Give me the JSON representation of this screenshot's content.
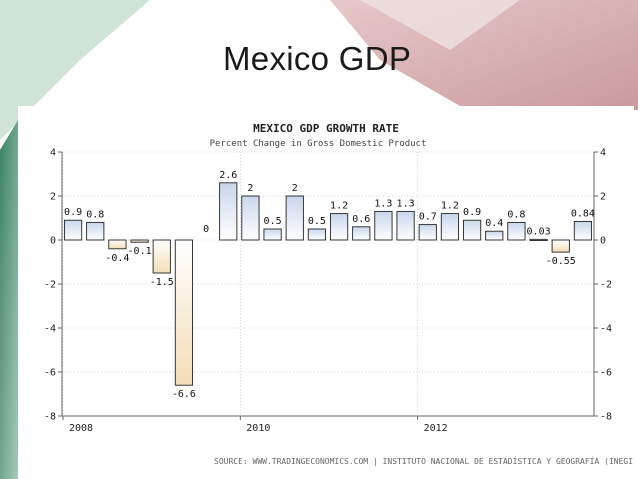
{
  "slide": {
    "title": "Mexico GDP"
  },
  "colors": {
    "positive_bar_top": "#c9d6ec",
    "positive_bar_bottom": "#ffffff",
    "negative_bar_top": "#ffffff",
    "negative_bar_bottom": "#f3ddb6",
    "bar_stroke": "#222222",
    "background_green": "#2f7a5a",
    "background_rose": "#c99a9e"
  },
  "chart_data": {
    "type": "bar",
    "title": "MEXICO GDP GROWTH RATE",
    "subtitle": "Percent Change in Gross Domestic Product",
    "source": "SOURCE: WWW.TRADINGECONOMICS.COM | INSTITUTO NACIONAL DE ESTADÍSTICA Y GEOGRAFÍA (INEGI)",
    "ylim": [
      -8,
      4
    ],
    "yticks": [
      4,
      2,
      0,
      -2,
      -4,
      -6,
      -8
    ],
    "xtick_labels": [
      "2008",
      "2010",
      "2012"
    ],
    "xtick_positions": [
      0,
      8,
      16
    ],
    "grid": true,
    "values": [
      0.9,
      0.8,
      -0.4,
      -0.1,
      -1.5,
      -6.6,
      0,
      2.6,
      2,
      0.5,
      2,
      0.5,
      1.2,
      0.6,
      1.3,
      1.3,
      0.7,
      1.2,
      0.9,
      0.4,
      0.8,
      0.03,
      -0.55,
      0.84
    ],
    "labels": [
      "0.9",
      "0.8",
      "-0.4",
      "-0.1",
      "-1.5",
      "-6.6",
      "0",
      "2.6",
      "2",
      "0.5",
      "2",
      "0.5",
      "1.2",
      "0.6",
      "1.3",
      "1.3",
      "0.7",
      "1.2",
      "0.9",
      "0.4",
      "0.8",
      "0.03",
      "-0.55",
      "0.84"
    ]
  }
}
